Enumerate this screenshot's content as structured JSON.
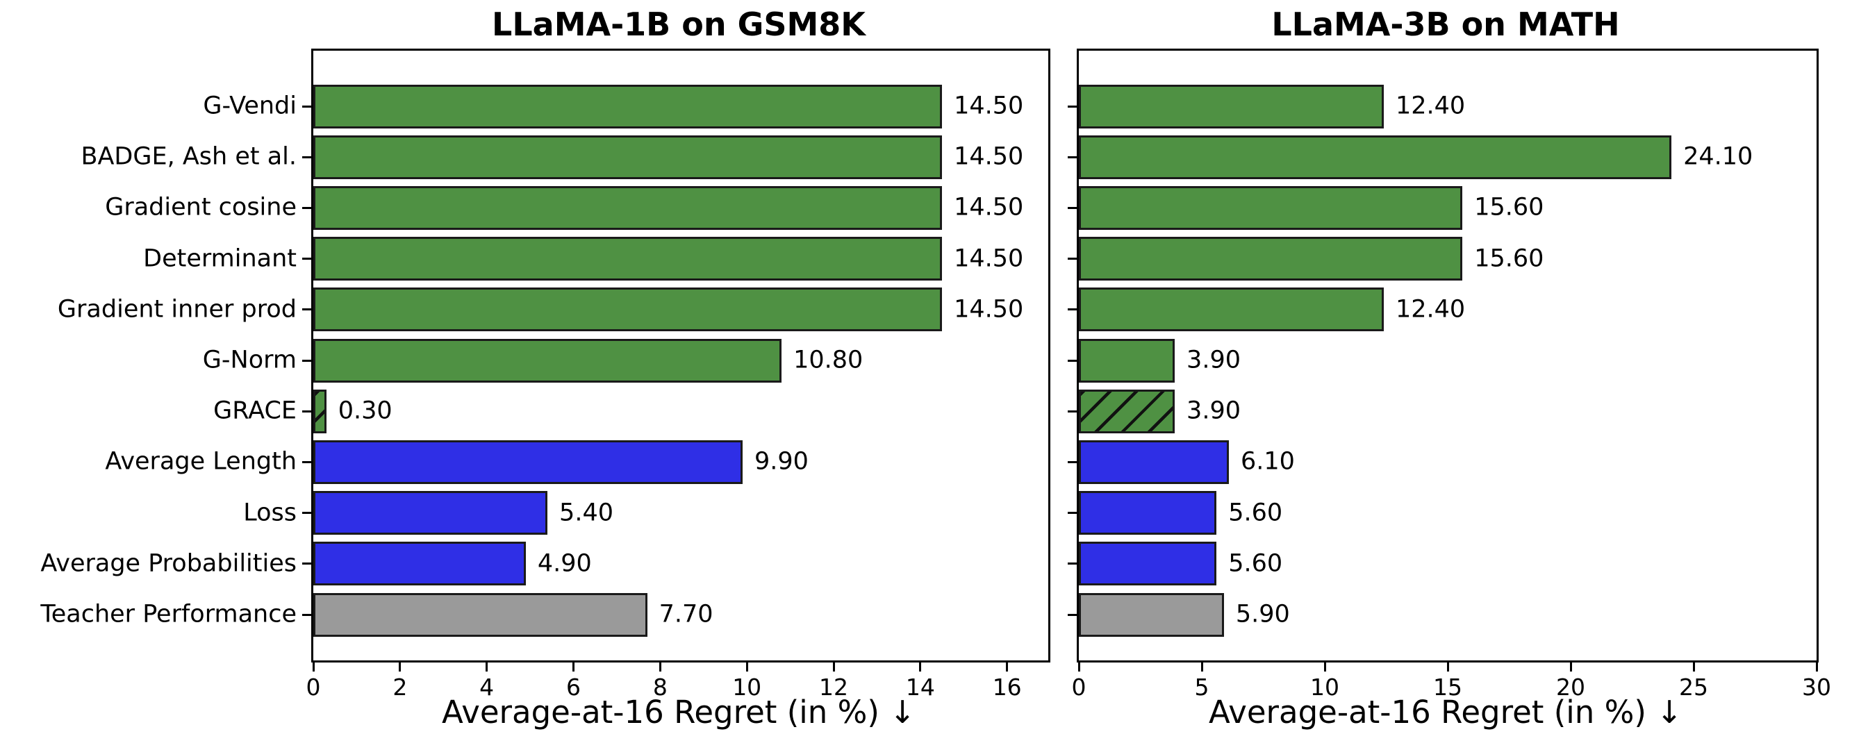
{
  "colors": {
    "green": "#4f9143",
    "blue": "#2f2fe6",
    "gray": "#9a9a9a",
    "edge": "#1a1a1a",
    "hatch": "#111111",
    "text": "#000000",
    "background": "#ffffff"
  },
  "chart_data": [
    {
      "type": "bar",
      "orientation": "horizontal",
      "title": "LLaMA-1B on GSM8K",
      "xlabel": "Average-at-16 Regret (in %) ↓",
      "categories": [
        "G-Vendi",
        "BADGE, Ash et al.",
        "Gradient cosine",
        "Determinant",
        "Gradient inner prod",
        "G-Norm",
        "GRACE",
        "Average Length",
        "Loss",
        "Average Probabilities",
        "Teacher Performance"
      ],
      "values": [
        14.5,
        14.5,
        14.5,
        14.5,
        14.5,
        10.8,
        0.3,
        9.9,
        5.4,
        4.9,
        7.7
      ],
      "value_labels": [
        "14.50",
        "14.50",
        "14.50",
        "14.50",
        "14.50",
        "10.80",
        "0.30",
        "9.90",
        "5.40",
        "4.90",
        "7.70"
      ],
      "bar_colors": [
        "green",
        "green",
        "green",
        "green",
        "green",
        "green",
        "green",
        "blue",
        "blue",
        "blue",
        "gray"
      ],
      "hatched": [
        false,
        false,
        false,
        false,
        false,
        false,
        true,
        false,
        false,
        false,
        false
      ],
      "xlim": [
        0,
        16.95
      ],
      "xticks": [
        0,
        2,
        4,
        6,
        8,
        10,
        12,
        14,
        16
      ],
      "xtick_labels": [
        "0",
        "2",
        "4",
        "6",
        "8",
        "10",
        "12",
        "14",
        "16"
      ],
      "show_category_labels": true,
      "grid": false,
      "legend": null
    },
    {
      "type": "bar",
      "orientation": "horizontal",
      "title": "LLaMA-3B on MATH",
      "xlabel": "Average-at-16 Regret (in %) ↓",
      "categories": [
        "G-Vendi",
        "BADGE, Ash et al.",
        "Gradient cosine",
        "Determinant",
        "Gradient inner prod",
        "G-Norm",
        "GRACE",
        "Average Length",
        "Loss",
        "Average Probabilities",
        "Teacher Performance"
      ],
      "values": [
        12.4,
        24.1,
        15.6,
        15.6,
        12.4,
        3.9,
        3.9,
        6.1,
        5.6,
        5.6,
        5.9
      ],
      "value_labels": [
        "12.40",
        "24.10",
        "15.60",
        "15.60",
        "12.40",
        "3.90",
        "3.90",
        "6.10",
        "5.60",
        "5.60",
        "5.90"
      ],
      "bar_colors": [
        "green",
        "green",
        "green",
        "green",
        "green",
        "green",
        "green",
        "blue",
        "blue",
        "blue",
        "gray"
      ],
      "hatched": [
        false,
        false,
        false,
        false,
        false,
        false,
        true,
        false,
        false,
        false,
        false
      ],
      "xlim": [
        0,
        30
      ],
      "xticks": [
        0,
        5,
        10,
        15,
        20,
        25,
        30
      ],
      "xtick_labels": [
        "0",
        "5",
        "10",
        "15",
        "20",
        "25",
        "30"
      ],
      "show_category_labels": false,
      "grid": false,
      "legend": null
    }
  ]
}
